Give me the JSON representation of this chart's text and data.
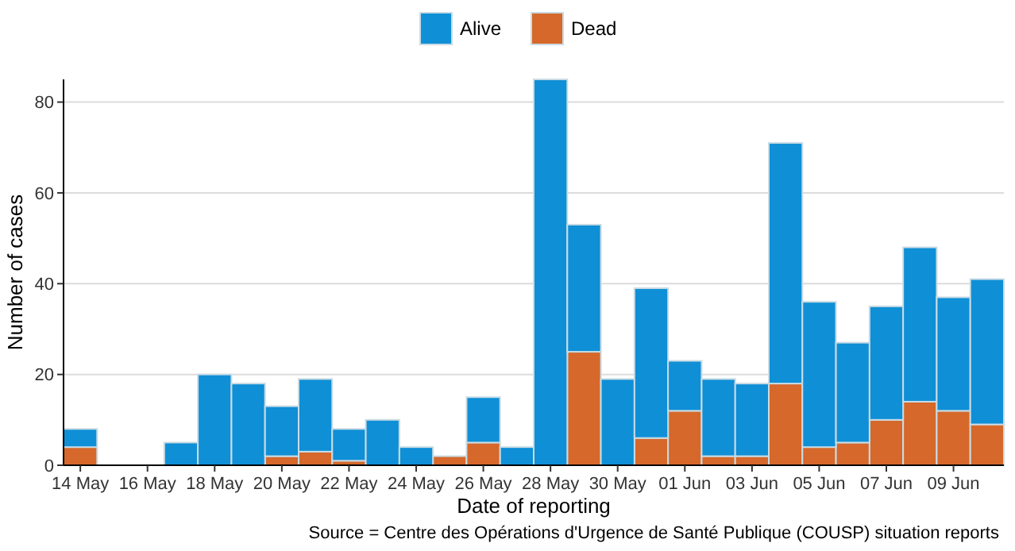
{
  "chart_data": {
    "type": "bar",
    "stacked": true,
    "categories": [
      "14 May",
      null,
      "16 May",
      null,
      "18 May",
      null,
      "20 May",
      null,
      "22 May",
      null,
      "24 May",
      null,
      "26 May",
      null,
      "28 May",
      null,
      "30 May",
      null,
      "01 Jun",
      null,
      "03 Jun",
      null,
      "05 Jun",
      null,
      "07 Jun",
      null,
      "09 Jun",
      null
    ],
    "series": [
      {
        "name": "Dead",
        "color": "#d5682a",
        "values": [
          4,
          0,
          0,
          0,
          0,
          0,
          2,
          3,
          1,
          0,
          0,
          2,
          5,
          0,
          0,
          25,
          0,
          6,
          12,
          2,
          2,
          18,
          4,
          5,
          10,
          14,
          12,
          9
        ]
      },
      {
        "name": "Alive",
        "color": "#0f8fd6",
        "values": [
          4,
          0,
          0,
          5,
          20,
          18,
          11,
          16,
          7,
          10,
          4,
          0,
          10,
          4,
          85,
          28,
          19,
          33,
          11,
          17,
          16,
          53,
          32,
          22,
          25,
          34,
          25,
          32
        ]
      }
    ],
    "ylim": [
      0,
      85
    ],
    "yticks": [
      0,
      20,
      40,
      60,
      80
    ],
    "grid": "y",
    "legend": "top",
    "xlabel": "Date of reporting",
    "ylabel": "Number of cases",
    "annotations": [
      "Source = Centre des Opérations d'Urgence de Santé Publique (COUSP) situation reports"
    ]
  }
}
